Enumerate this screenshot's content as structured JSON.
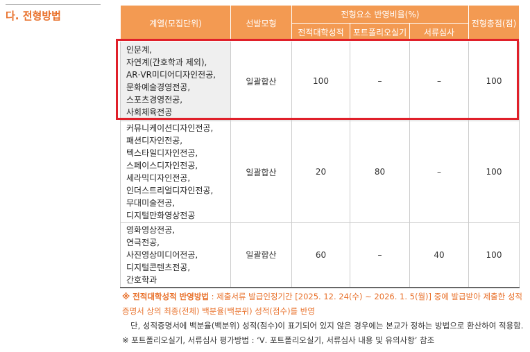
{
  "heading": "다. 전형방법",
  "table": {
    "header": {
      "category": "계열(모집단위)",
      "model": "선발모형",
      "ratio_group": "전형요소 반영비율(%)",
      "ratio_columns": [
        "전적대학성적",
        "포트폴리오실기",
        "서류심사"
      ],
      "total": "전형총점(점)"
    },
    "rows": [
      {
        "units": [
          "인문계,",
          "자연계(간호학과 제외),",
          "AR·VR미디어디자인전공,",
          "문화예술경영전공,",
          "스포츠경영전공,",
          "사회체육전공"
        ],
        "model": "일괄합산",
        "ratios": [
          "100",
          "–",
          "–"
        ],
        "total": "100"
      },
      {
        "units": [
          "커뮤니케이션디자인전공,",
          "패션디자인전공,",
          "텍스타일디자인전공,",
          "스페이스디자인전공,",
          "세라믹디자인전공,",
          "인더스트리얼디자인전공,",
          "무대미술전공,",
          "디지털만화영상전공"
        ],
        "model": "일괄합산",
        "ratios": [
          "20",
          "80",
          "–"
        ],
        "total": "100"
      },
      {
        "units": [
          "영화영상전공,",
          "연극전공,",
          "사진영상미디어전공,",
          "디지털콘텐츠전공,",
          "간호학과"
        ],
        "model": "일괄합산",
        "ratios": [
          "60",
          "–",
          "40"
        ],
        "total": "100"
      }
    ]
  },
  "notes": [
    {
      "label": "※ 전적대학성적 반영방법",
      "text": " : 제출서류 발급인정기간 [2025. 12. 24(수) ~ 2026. 1. 5(월)] 중에 발급받아 제출한 성적증명서 상의 최종(전체) 백분율(백분위) 성적(점수)를 반영"
    },
    {
      "text": "단, 성적증명서에 백분율(백분위) 성적(점수)이 표기되어 있지 않은 경우에는 본교가 정하는 방법으로 환산하여 적용함."
    },
    {
      "text": "※ 포트폴리오실기, 서류심사 평가방법 : ‘Ⅴ. 포트폴리오실기, 서류심사 내용 및 유의사항’ 참조"
    }
  ]
}
